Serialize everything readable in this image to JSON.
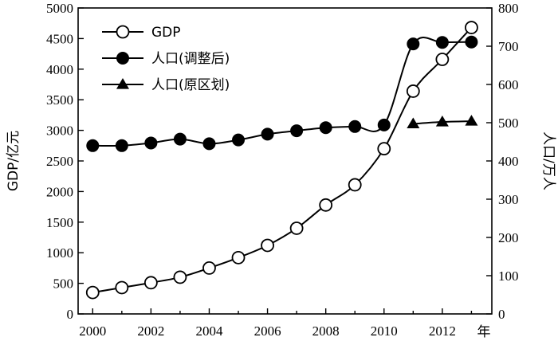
{
  "chart_data": {
    "type": "line",
    "x": [
      2000,
      2001,
      2002,
      2003,
      2004,
      2005,
      2006,
      2007,
      2008,
      2009,
      2010,
      2011,
      2012,
      2013
    ],
    "x_range": [
      1999.5,
      2013.7
    ],
    "x_ticks": [
      2000,
      2002,
      2004,
      2006,
      2008,
      2010,
      2012
    ],
    "x_unit_label": "年",
    "left_axis": {
      "label": "GDP/亿元",
      "range": [
        0,
        5000
      ],
      "ticks": [
        0,
        500,
        1000,
        1500,
        2000,
        2500,
        3000,
        3500,
        4000,
        4500,
        5000
      ]
    },
    "right_axis": {
      "label": "人口/万人",
      "range": [
        0,
        800
      ],
      "ticks": [
        0,
        100,
        200,
        300,
        400,
        500,
        600,
        700,
        800
      ]
    },
    "series": [
      {
        "name": "GDP",
        "axis": "left",
        "marker": "open-circle",
        "x": [
          2000,
          2001,
          2002,
          2003,
          2004,
          2005,
          2006,
          2007,
          2008,
          2009,
          2010,
          2011,
          2012,
          2013
        ],
        "values": [
          350,
          430,
          510,
          600,
          750,
          920,
          1120,
          1400,
          1780,
          2110,
          2700,
          3640,
          4160,
          4680
        ]
      },
      {
        "name": "人口(调整后)",
        "axis": "right",
        "marker": "filled-circle",
        "x": [
          2000,
          2001,
          2002,
          2003,
          2004,
          2005,
          2006,
          2007,
          2008,
          2009,
          2010,
          2011,
          2012,
          2013
        ],
        "values": [
          440,
          440,
          447,
          457,
          445,
          455,
          470,
          479,
          487,
          490,
          494,
          706,
          710,
          711
        ]
      },
      {
        "name": "人口(原区划)",
        "axis": "right",
        "marker": "filled-triangle",
        "x": [
          2011,
          2012,
          2013
        ],
        "values": [
          497,
          502,
          504
        ]
      }
    ],
    "legend_position": "top-left",
    "grid": false
  }
}
